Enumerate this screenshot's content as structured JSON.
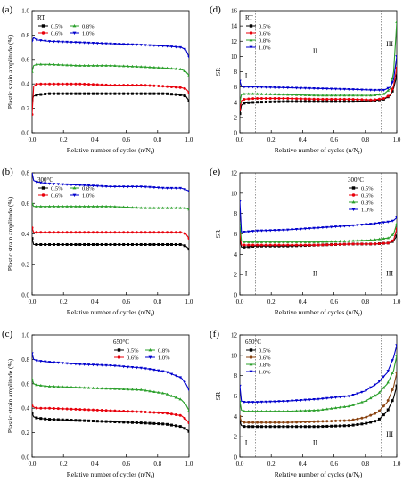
{
  "chart_data": [
    {
      "type": "line",
      "panel_letter": "(a)",
      "temperature": "RT",
      "xlabel": "Relative number of cycles (n/N",
      "xlabel_sub": "f",
      "ylabel": "Plastic strain amplitude (%)",
      "xlim": [
        0,
        1
      ],
      "ylim": [
        0,
        1.0
      ],
      "xticks": [
        "0.0",
        "0.2",
        "0.4",
        "0.6",
        "0.8",
        "1.0"
      ],
      "yticks": [
        "0.0",
        "0.2",
        "0.4",
        "0.6",
        "0.8",
        "1.0"
      ],
      "xtick_values": [
        0,
        0.2,
        0.4,
        0.6,
        0.8,
        1.0
      ],
      "ytick_values": [
        0,
        0.2,
        0.4,
        0.6,
        0.8,
        1.0
      ],
      "legend_position": "top-left",
      "legend_columns": 2,
      "series": [
        {
          "name": "0.5%",
          "color": "#000000",
          "marker": "square",
          "x": [
            0,
            0.01,
            0.03,
            0.1,
            0.3,
            0.5,
            0.7,
            0.85,
            0.95,
            0.98,
            1.0
          ],
          "y": [
            0.27,
            0.3,
            0.31,
            0.32,
            0.32,
            0.32,
            0.32,
            0.32,
            0.31,
            0.3,
            0.26
          ]
        },
        {
          "name": "0.6%",
          "color": "#e8000b",
          "marker": "circle",
          "x": [
            0,
            0.01,
            0.03,
            0.1,
            0.3,
            0.5,
            0.7,
            0.85,
            0.95,
            0.98,
            1.0
          ],
          "y": [
            0.15,
            0.38,
            0.4,
            0.4,
            0.4,
            0.39,
            0.39,
            0.38,
            0.37,
            0.36,
            0.33
          ]
        },
        {
          "name": "0.8%",
          "color": "#2ca02c",
          "marker": "triangle-up",
          "x": [
            0,
            0.01,
            0.03,
            0.1,
            0.3,
            0.5,
            0.7,
            0.85,
            0.95,
            0.98,
            1.0
          ],
          "y": [
            0.5,
            0.55,
            0.56,
            0.56,
            0.55,
            0.55,
            0.54,
            0.53,
            0.52,
            0.5,
            0.47
          ]
        },
        {
          "name": "1.0%",
          "color": "#0000cd",
          "marker": "triangle-down",
          "x": [
            0,
            0.01,
            0.03,
            0.1,
            0.3,
            0.5,
            0.7,
            0.85,
            0.95,
            0.98,
            1.0
          ],
          "y": [
            0.75,
            0.78,
            0.76,
            0.75,
            0.74,
            0.73,
            0.72,
            0.71,
            0.7,
            0.68,
            0.62
          ]
        }
      ]
    },
    {
      "type": "line",
      "panel_letter": "(d)",
      "temperature": "RT",
      "xlabel": "Relative number of cycles (n/N",
      "xlabel_sub": "f",
      "ylabel": "SR",
      "xlim": [
        0,
        1
      ],
      "ylim": [
        0,
        16
      ],
      "xticks": [
        "0.0",
        "0.2",
        "0.4",
        "0.6",
        "0.8",
        "1.0"
      ],
      "yticks": [
        "0",
        "2",
        "4",
        "6",
        "8",
        "10",
        "12",
        "14",
        "16"
      ],
      "xtick_values": [
        0,
        0.2,
        0.4,
        0.6,
        0.8,
        1.0
      ],
      "ytick_values": [
        0,
        2,
        4,
        6,
        8,
        10,
        12,
        14,
        16
      ],
      "legend_position": "top-left",
      "legend_columns": 1,
      "stage_lines_x": [
        0.1,
        0.9
      ],
      "stage_labels": [
        {
          "text": "I",
          "x": 0.04,
          "y": 7.2
        },
        {
          "text": "II",
          "x": 0.48,
          "y": 10.4
        },
        {
          "text": "III",
          "x": 0.955,
          "y": 11.3
        }
      ],
      "series": [
        {
          "name": "0.5%",
          "color": "#000000",
          "marker": "square",
          "x": [
            0,
            0.01,
            0.03,
            0.1,
            0.3,
            0.5,
            0.7,
            0.85,
            0.92,
            0.96,
            0.98,
            1.0
          ],
          "y": [
            2.5,
            3.6,
            3.9,
            4.0,
            4.1,
            4.1,
            4.1,
            4.2,
            4.4,
            4.9,
            5.8,
            7.5
          ]
        },
        {
          "name": "0.6%",
          "color": "#e8000b",
          "marker": "circle",
          "x": [
            0,
            0.01,
            0.03,
            0.1,
            0.3,
            0.5,
            0.7,
            0.85,
            0.92,
            0.96,
            0.98,
            1.0
          ],
          "y": [
            3.0,
            4.2,
            4.4,
            4.5,
            4.5,
            4.4,
            4.4,
            4.3,
            4.5,
            5.0,
            6.2,
            8.5
          ]
        },
        {
          "name": "0.8%",
          "color": "#2ca02c",
          "marker": "triangle-up",
          "x": [
            0,
            0.01,
            0.03,
            0.1,
            0.3,
            0.5,
            0.7,
            0.85,
            0.92,
            0.96,
            0.98,
            1.0
          ],
          "y": [
            4.0,
            5.0,
            5.1,
            5.1,
            5.0,
            4.9,
            4.9,
            4.9,
            5.1,
            5.8,
            8.0,
            14.5
          ]
        },
        {
          "name": "1.0%",
          "color": "#0000cd",
          "marker": "triangle-down",
          "x": [
            0,
            0.01,
            0.03,
            0.1,
            0.3,
            0.5,
            0.7,
            0.85,
            0.92,
            0.96,
            0.98,
            1.0
          ],
          "y": [
            6.8,
            6.1,
            6.0,
            6.0,
            5.9,
            5.8,
            5.7,
            5.6,
            5.6,
            6.0,
            7.0,
            10.0
          ]
        }
      ]
    },
    {
      "type": "line",
      "panel_letter": "(b)",
      "temperature": "300°C",
      "xlabel": "Relative number of cycles (n/N",
      "xlabel_sub": "f",
      "ylabel": "Plastic strain amplitude (%)",
      "xlim": [
        0,
        1
      ],
      "ylim": [
        0,
        0.8
      ],
      "xticks": [
        "0.0",
        "0.2",
        "0.4",
        "0.6",
        "0.8",
        "1.0"
      ],
      "yticks": [
        "0.0",
        "0.2",
        "0.4",
        "0.6",
        "0.8"
      ],
      "xtick_values": [
        0,
        0.2,
        0.4,
        0.6,
        0.8,
        1.0
      ],
      "ytick_values": [
        0,
        0.2,
        0.4,
        0.6,
        0.8
      ],
      "legend_position": "top-left",
      "legend_columns": 2,
      "series": [
        {
          "name": "0.5%",
          "color": "#000000",
          "marker": "square",
          "x": [
            0,
            0.01,
            0.03,
            0.1,
            0.3,
            0.5,
            0.7,
            0.85,
            0.95,
            0.98,
            1.0
          ],
          "y": [
            0.37,
            0.33,
            0.33,
            0.33,
            0.33,
            0.33,
            0.33,
            0.33,
            0.33,
            0.32,
            0.3
          ]
        },
        {
          "name": "0.6%",
          "color": "#e8000b",
          "marker": "circle",
          "x": [
            0,
            0.01,
            0.03,
            0.1,
            0.3,
            0.5,
            0.7,
            0.85,
            0.95,
            0.98,
            1.0
          ],
          "y": [
            0.44,
            0.41,
            0.41,
            0.41,
            0.41,
            0.41,
            0.41,
            0.41,
            0.41,
            0.4,
            0.37
          ]
        },
        {
          "name": "0.8%",
          "color": "#2ca02c",
          "marker": "triangle-up",
          "x": [
            0,
            0.01,
            0.03,
            0.1,
            0.3,
            0.5,
            0.7,
            0.85,
            0.95,
            0.98,
            1.0
          ],
          "y": [
            0.6,
            0.58,
            0.58,
            0.58,
            0.58,
            0.58,
            0.57,
            0.57,
            0.57,
            0.57,
            0.56
          ]
        },
        {
          "name": "1.0%",
          "color": "#0000cd",
          "marker": "triangle-down",
          "x": [
            0,
            0.01,
            0.03,
            0.1,
            0.3,
            0.5,
            0.7,
            0.85,
            0.95,
            0.98,
            1.0
          ],
          "y": [
            0.8,
            0.75,
            0.74,
            0.73,
            0.72,
            0.71,
            0.71,
            0.7,
            0.7,
            0.69,
            0.68
          ]
        }
      ]
    },
    {
      "type": "line",
      "panel_letter": "(e)",
      "temperature": "300°C",
      "xlabel": "Relative number of cycles (n/N",
      "xlabel_sub": "f",
      "ylabel": "SR",
      "xlim": [
        0,
        1
      ],
      "ylim": [
        0,
        12
      ],
      "xticks": [
        "0.0",
        "0.2",
        "0.4",
        "0.6",
        "0.8",
        "1.0"
      ],
      "yticks": [
        "0",
        "2",
        "4",
        "6",
        "8",
        "10",
        "12"
      ],
      "xtick_values": [
        0,
        0.2,
        0.4,
        0.6,
        0.8,
        1.0
      ],
      "ytick_values": [
        0,
        2,
        4,
        6,
        8,
        10,
        12
      ],
      "legend_position": "top-right",
      "legend_columns": 1,
      "stage_lines_x": [
        0.1,
        0.9
      ],
      "stage_labels": [
        {
          "text": "I",
          "x": 0.04,
          "y": 1.9
        },
        {
          "text": "II",
          "x": 0.48,
          "y": 1.9
        },
        {
          "text": "III",
          "x": 0.955,
          "y": 1.9
        }
      ],
      "series": [
        {
          "name": "0.5%",
          "color": "#000000",
          "marker": "square",
          "x": [
            0,
            0.01,
            0.03,
            0.1,
            0.3,
            0.5,
            0.7,
            0.85,
            0.95,
            0.98,
            1.0
          ],
          "y": [
            5.5,
            4.7,
            4.7,
            4.8,
            4.8,
            4.9,
            5.0,
            5.0,
            5.1,
            5.3,
            5.8
          ]
        },
        {
          "name": "0.6%",
          "color": "#e8000b",
          "marker": "circle",
          "x": [
            0,
            0.01,
            0.03,
            0.1,
            0.3,
            0.5,
            0.7,
            0.85,
            0.95,
            0.98,
            1.0
          ],
          "y": [
            6.0,
            4.9,
            4.9,
            4.9,
            4.9,
            4.9,
            5.0,
            5.0,
            5.1,
            5.4,
            6.5
          ]
        },
        {
          "name": "0.8%",
          "color": "#2ca02c",
          "marker": "triangle-up",
          "x": [
            0,
            0.01,
            0.03,
            0.1,
            0.3,
            0.5,
            0.7,
            0.85,
            0.95,
            0.98,
            1.0
          ],
          "y": [
            7.0,
            5.3,
            5.2,
            5.2,
            5.2,
            5.2,
            5.3,
            5.4,
            5.6,
            6.0,
            7.0
          ]
        },
        {
          "name": "1.0%",
          "color": "#0000cd",
          "marker": "triangle-down",
          "x": [
            0,
            0.01,
            0.03,
            0.1,
            0.3,
            0.5,
            0.7,
            0.85,
            0.95,
            0.98,
            1.0
          ],
          "y": [
            9.2,
            6.2,
            6.2,
            6.3,
            6.4,
            6.6,
            6.8,
            7.0,
            7.2,
            7.3,
            7.6
          ]
        }
      ]
    },
    {
      "type": "line",
      "panel_letter": "(c)",
      "temperature": "650°C",
      "xlabel": "Relative number of cycles (n/N",
      "xlabel_sub": "f",
      "ylabel": "Plastic strain amplitude (%)",
      "xlim": [
        0,
        1
      ],
      "ylim": [
        0,
        1.0
      ],
      "xticks": [
        "0.0",
        "0.2",
        "0.4",
        "0.6",
        "0.8",
        "1.0"
      ],
      "yticks": [
        "0.0",
        "0.2",
        "0.4",
        "0.6",
        "0.8",
        "1.0"
      ],
      "xtick_values": [
        0,
        0.2,
        0.4,
        0.6,
        0.8,
        1.0
      ],
      "ytick_values": [
        0,
        0.2,
        0.4,
        0.6,
        0.8,
        1.0
      ],
      "legend_position": "top-right",
      "legend_columns": 2,
      "series": [
        {
          "name": "0.5%",
          "color": "#000000",
          "marker": "square",
          "x": [
            0,
            0.01,
            0.03,
            0.1,
            0.3,
            0.5,
            0.7,
            0.85,
            0.95,
            0.98,
            1.0
          ],
          "y": [
            0.36,
            0.33,
            0.32,
            0.31,
            0.3,
            0.29,
            0.28,
            0.27,
            0.25,
            0.23,
            0.21
          ]
        },
        {
          "name": "0.6%",
          "color": "#e8000b",
          "marker": "circle",
          "x": [
            0,
            0.01,
            0.03,
            0.1,
            0.3,
            0.5,
            0.7,
            0.85,
            0.95,
            0.98,
            1.0
          ],
          "y": [
            0.42,
            0.41,
            0.4,
            0.4,
            0.39,
            0.38,
            0.37,
            0.36,
            0.34,
            0.31,
            0.28
          ]
        },
        {
          "name": "0.8%",
          "color": "#2ca02c",
          "marker": "triangle-up",
          "x": [
            0,
            0.01,
            0.03,
            0.1,
            0.3,
            0.5,
            0.7,
            0.85,
            0.95,
            0.98,
            1.0
          ],
          "y": [
            0.64,
            0.6,
            0.59,
            0.58,
            0.57,
            0.56,
            0.55,
            0.52,
            0.47,
            0.43,
            0.38
          ]
        },
        {
          "name": "1.0%",
          "color": "#0000cd",
          "marker": "triangle-down",
          "x": [
            0,
            0.01,
            0.03,
            0.1,
            0.3,
            0.5,
            0.7,
            0.85,
            0.95,
            0.98,
            1.0
          ],
          "y": [
            0.85,
            0.8,
            0.79,
            0.78,
            0.76,
            0.75,
            0.73,
            0.7,
            0.65,
            0.6,
            0.55
          ]
        }
      ]
    },
    {
      "type": "line",
      "panel_letter": "(f)",
      "temperature": "650°C",
      "xlabel": "Relative number of cycles (n/N",
      "xlabel_sub": "f",
      "ylabel": "SR",
      "xlim": [
        0,
        1
      ],
      "ylim": [
        0,
        12
      ],
      "xticks": [
        "0.0",
        "0.2",
        "0.4",
        "0.6",
        "0.8",
        "1.0"
      ],
      "yticks": [
        "0",
        "2",
        "4",
        "6",
        "8",
        "10",
        "12"
      ],
      "xtick_values": [
        0,
        0.2,
        0.4,
        0.6,
        0.8,
        1.0
      ],
      "ytick_values": [
        0,
        2,
        4,
        6,
        8,
        10,
        12
      ],
      "legend_position": "top-left",
      "legend_columns": 1,
      "stage_lines_x": [
        0.1,
        0.9
      ],
      "stage_labels": [
        {
          "text": "I",
          "x": 0.04,
          "y": 1.2
        },
        {
          "text": "II",
          "x": 0.48,
          "y": 1.2
        },
        {
          "text": "III",
          "x": 0.955,
          "y": 2.0
        }
      ],
      "series": [
        {
          "name": "0.5%",
          "color": "#000000",
          "marker": "square",
          "x": [
            0,
            0.01,
            0.03,
            0.1,
            0.3,
            0.5,
            0.7,
            0.8,
            0.88,
            0.94,
            0.98,
            1.0
          ],
          "y": [
            3.5,
            3.1,
            3.0,
            3.0,
            3.0,
            3.0,
            3.1,
            3.3,
            3.6,
            4.5,
            5.8,
            7.0
          ]
        },
        {
          "name": "0.6%",
          "color": "#8b4513",
          "marker": "circle",
          "x": [
            0,
            0.01,
            0.03,
            0.1,
            0.3,
            0.5,
            0.7,
            0.8,
            0.88,
            0.94,
            0.98,
            1.0
          ],
          "y": [
            4.0,
            3.5,
            3.4,
            3.4,
            3.4,
            3.5,
            3.6,
            3.9,
            4.4,
            5.4,
            6.9,
            8.3
          ]
        },
        {
          "name": "0.8%",
          "color": "#2ca02c",
          "marker": "triangle-up",
          "x": [
            0,
            0.01,
            0.03,
            0.1,
            0.3,
            0.5,
            0.7,
            0.8,
            0.88,
            0.94,
            0.98,
            1.0
          ],
          "y": [
            5.5,
            4.6,
            4.5,
            4.5,
            4.5,
            4.6,
            5.0,
            5.5,
            6.2,
            7.2,
            8.5,
            10.0
          ]
        },
        {
          "name": "1.0%",
          "color": "#0000cd",
          "marker": "triangle-down",
          "x": [
            0,
            0.01,
            0.03,
            0.1,
            0.3,
            0.5,
            0.7,
            0.8,
            0.88,
            0.94,
            0.98,
            1.0
          ],
          "y": [
            7.0,
            5.5,
            5.4,
            5.4,
            5.5,
            5.7,
            6.0,
            6.5,
            7.3,
            8.3,
            9.8,
            11.0
          ]
        }
      ]
    }
  ]
}
